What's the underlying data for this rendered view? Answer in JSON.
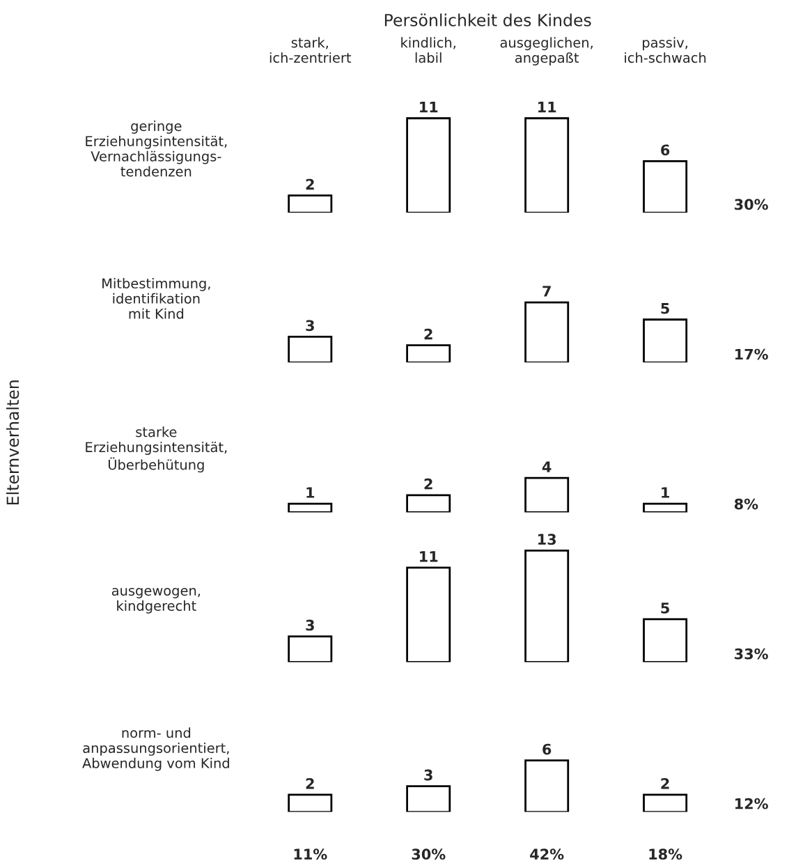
{
  "chart_data": [
    {
      "type": "bar",
      "title": "Persönlichkeit des Kindes",
      "subtitle": "geringe\nErziehungsintensität,\nVernachlässigungs-\ntendenzen",
      "categories": [
        "stark,\nich-zentriert",
        "kindlich,\nlabil",
        "ausgeglichen,\nangepaßt",
        "passiv,\nich-schwach"
      ],
      "values": [
        2,
        11,
        11,
        6
      ],
      "color": "#ffffff",
      "data_labels": true,
      "annotations": [
        "30%"
      ]
    },
    {
      "type": "bar",
      "subtitle": "Mitbestimmung,\nidentifikation\nmit Kind",
      "categories": [
        null,
        null,
        null,
        null
      ],
      "values": [
        3,
        2,
        7,
        5
      ],
      "color": "#ffffff",
      "data_labels": true,
      "annotations": [
        "17%"
      ]
    },
    {
      "type": "bar",
      "ylabel": "Elternverhalten",
      "subtitle": "starke\nErziehungsintensität,\nÜberbehütung",
      "categories": [
        null,
        null,
        null,
        null
      ],
      "values": [
        1,
        2,
        4,
        1
      ],
      "color": "#ffffff",
      "data_labels": true,
      "annotations": [
        "8%"
      ]
    },
    {
      "type": "bar",
      "subtitle": "ausgewogen,\nkindgerecht",
      "categories": [
        null,
        null,
        null,
        null
      ],
      "values": [
        3,
        11,
        13,
        5
      ],
      "color": "#ffffff",
      "data_labels": true,
      "annotations": [
        "33%"
      ]
    },
    {
      "type": "bar",
      "subtitle": "norm- und\nanpassungsorientiert,\nAbwendung vom Kind",
      "categories": [
        null,
        null,
        null,
        null
      ],
      "values": [
        2,
        3,
        6,
        2
      ],
      "color": "#ffffff",
      "data_labels": true,
      "annotations": [
        "12%",
        "11%",
        "30%",
        "42%",
        "18%"
      ]
    }
  ]
}
